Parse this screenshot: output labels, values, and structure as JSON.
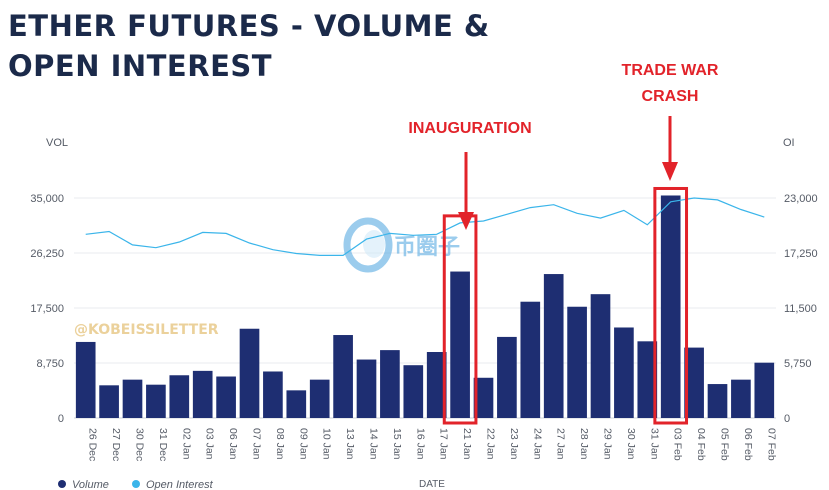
{
  "title": {
    "line1": "ETHER FUTURES - VOLUME &",
    "line2": "OPEN INTEREST"
  },
  "watermarks": {
    "handle": "@KOBEISSILETTER",
    "logo_text": "币圈子"
  },
  "annotations": {
    "inauguration": "INAUGURATION",
    "trade_war_line1": "TRADE WAR",
    "trade_war_line2": "CRASH"
  },
  "colors": {
    "volume": "#1e2e72",
    "open_interest": "#3bb5ea",
    "annotation": "#e2232a",
    "title": "#1b2a4a"
  },
  "chart_data": {
    "type": "bar",
    "xlabel": "DATE",
    "ylabel_left": "VOL",
    "ylabel_right": "OI",
    "ylim_left": [
      0,
      35000
    ],
    "ylim_right": [
      0,
      23000
    ],
    "left_ticks": [
      "0",
      "8,750",
      "17,500",
      "26,250",
      "35,000"
    ],
    "right_ticks": [
      "0",
      "5,750",
      "11,500",
      "17,250",
      "23,000"
    ],
    "grid": "horizontal",
    "legend_position": "bottom-left",
    "categories": [
      "26 Dec",
      "27 Dec",
      "30 Dec",
      "31 Dec",
      "02 Jan",
      "03 Jan",
      "06 Jan",
      "07 Jan",
      "08 Jan",
      "09 Jan",
      "10 Jan",
      "13 Jan",
      "14 Jan",
      "15 Jan",
      "16 Jan",
      "17 Jan",
      "21 Jan",
      "22 Jan",
      "23 Jan",
      "24 Jan",
      "27 Jan",
      "28 Jan",
      "29 Jan",
      "30 Jan",
      "31 Jan",
      "03 Feb",
      "04 Feb",
      "05 Feb",
      "06 Feb",
      "07 Feb"
    ],
    "series": [
      {
        "name": "Volume",
        "type": "bar",
        "axis": "left",
        "values": [
          12100,
          5200,
          6100,
          5300,
          6800,
          7500,
          6600,
          14200,
          7400,
          4400,
          6100,
          13200,
          9300,
          10800,
          8400,
          10500,
          23300,
          6400,
          12900,
          18500,
          22900,
          17700,
          19700,
          14400,
          12200,
          35400,
          11200,
          5400,
          6100,
          8800
        ]
      },
      {
        "name": "Open Interest",
        "type": "line",
        "axis": "right",
        "values": [
          19200,
          19500,
          18100,
          17800,
          18400,
          19400,
          19300,
          18300,
          17600,
          17200,
          17000,
          17000,
          18700,
          19300,
          19100,
          19200,
          20400,
          20600,
          21300,
          22000,
          22300,
          21400,
          20900,
          21700,
          20200,
          22600,
          23000,
          22800,
          21800,
          21000
        ]
      }
    ],
    "highlights": [
      {
        "label": "INAUGURATION",
        "category": "21 Jan"
      },
      {
        "label": "TRADE WAR CRASH",
        "category": "03 Feb"
      }
    ]
  }
}
